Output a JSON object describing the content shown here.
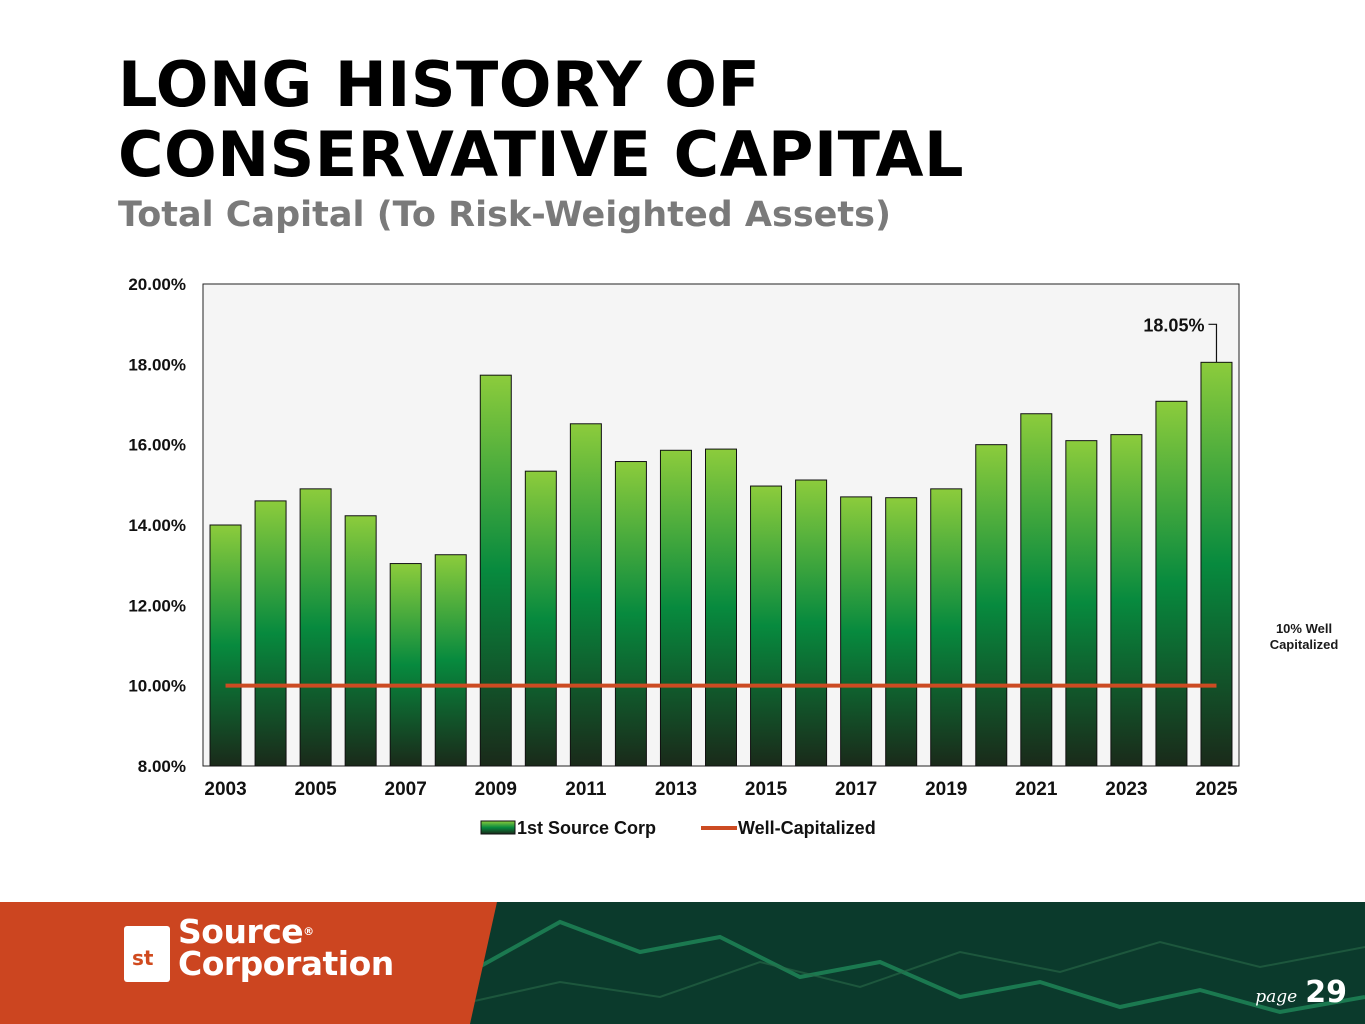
{
  "header": {
    "title_line1": "LONG HISTORY OF",
    "title_line2": "CONSERVATIVE CAPITAL",
    "subtitle": "Total Capital (To Risk-Weighted Assets)"
  },
  "chart_data": {
    "type": "bar",
    "title": "Total Capital (To Risk-Weighted Assets)",
    "categories": [
      "2003",
      "2004",
      "2005",
      "2006",
      "2007",
      "2008",
      "2009",
      "2010",
      "2011",
      "2012",
      "2013",
      "2014",
      "2015",
      "2016",
      "2017",
      "2018",
      "2019",
      "2020",
      "2021",
      "2022",
      "2023",
      "2024",
      "2025"
    ],
    "x_tick_labels": [
      "2003",
      "2005",
      "2007",
      "2009",
      "2011",
      "2013",
      "2015",
      "2017",
      "2019",
      "2021",
      "2023",
      "2025"
    ],
    "y_tick_labels": [
      "8.00%",
      "10.00%",
      "12.00%",
      "14.00%",
      "16.00%",
      "18.00%",
      "20.00%"
    ],
    "series": [
      {
        "name": "1st Source Corp",
        "type": "bar",
        "values": [
          14.0,
          14.6,
          14.9,
          14.23,
          13.04,
          13.26,
          17.73,
          15.34,
          16.52,
          15.58,
          15.86,
          15.89,
          14.97,
          15.12,
          14.7,
          14.68,
          14.9,
          16.0,
          16.77,
          16.1,
          16.25,
          17.08,
          18.05
        ]
      },
      {
        "name": "Well-Capitalized",
        "type": "line",
        "values": [
          10,
          10,
          10,
          10,
          10,
          10,
          10,
          10,
          10,
          10,
          10,
          10,
          10,
          10,
          10,
          10,
          10,
          10,
          10,
          10,
          10,
          10,
          10
        ]
      }
    ],
    "ylim": [
      8,
      20
    ],
    "y_step": 2,
    "xlabel": "",
    "ylabel": "",
    "annotation": {
      "category": "2025",
      "text": "18.05%"
    },
    "side_note": "10% Well Capitalized",
    "legend": [
      "1st Source Corp",
      "Well-Capitalized"
    ],
    "legend_position": "bottom",
    "grid": false
  },
  "colors": {
    "bar_top": "#8ccc3c",
    "bar_mid": "#078a3e",
    "bar_bottom": "#1a2a1a",
    "line": "#cc4b22",
    "plot_bg": "#f5f5f5",
    "footer_orange": "#cc4520",
    "footer_dark": "#0b3a2c"
  },
  "footer": {
    "logo_mark_text": "st",
    "logo_line1": "Source",
    "logo_reg": "®",
    "logo_line2": "Corporation",
    "page_label": "page",
    "page_number": "29"
  }
}
